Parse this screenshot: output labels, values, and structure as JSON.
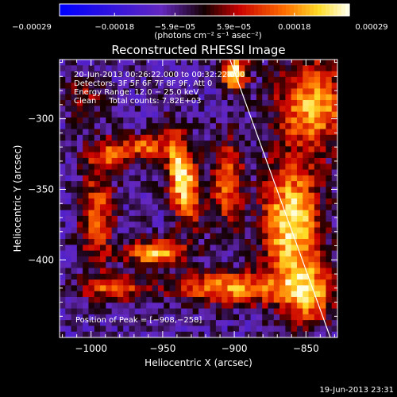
{
  "chart_data": {
    "type": "heatmap",
    "title": "Reconstructed RHESSI Image",
    "xlabel": "Heliocentric X (arcsec)",
    "ylabel": "Heliocentric Y (arcsec)",
    "xlim": [
      -1022,
      -828
    ],
    "ylim": [
      -455,
      -258
    ],
    "x_ticks": [
      -1000,
      -950,
      -900,
      -850
    ],
    "x_tick_labels": [
      "−1000",
      "−950",
      "−900",
      "−850"
    ],
    "y_ticks": [
      -400,
      -350,
      -300
    ],
    "y_tick_labels": [
      "−400",
      "−350",
      "−300"
    ],
    "colorbar": {
      "unit_label": "(photons cm⁻² s⁻¹ asec⁻²)",
      "min": -0.00029,
      "max": 0.00029,
      "top_tick_labels": [
        "−5.9e−05",
        "5.9e−05"
      ],
      "top_tick_values": [
        -5.9e-05,
        5.9e-05
      ],
      "bottom_tick_labels": [
        "−0.00029",
        "−0.00018",
        "−5.9e−05",
        "5.9e−05",
        "0.00018",
        "0.00029"
      ],
      "bottom_tick_values": [
        -0.00029,
        -0.00018,
        -5.9e-05,
        5.9e-05,
        0.00018,
        0.00029
      ]
    },
    "annotations": {
      "time_range": "20-Jun-2013 00:26:22.000 to 00:32:22.000",
      "detectors": "Detectors: 3F 5F 6F 7F 8F 9F, Att 0",
      "energy_range": "Energy Range: 12.0 − 25.0 keV",
      "clean_counts": "Clean     Total counts: 7.82E+03",
      "peak_position": "Position of Peak = [−908,−258]"
    },
    "limb_line": {
      "x": [
        -903,
        -833
      ],
      "y": [
        -258,
        -455
      ]
    },
    "sources": [
      {
        "x": -936,
        "y": -342,
        "amp": 1.0,
        "sx": 7,
        "sy": 22,
        "theta": 0.15
      },
      {
        "x": -955,
        "y": -395,
        "amp": 0.85,
        "sx": 14,
        "sy": 6,
        "theta": 0
      },
      {
        "x": -960,
        "y": -320,
        "amp": 0.55,
        "sx": 10,
        "sy": 6,
        "theta": 0
      },
      {
        "x": -996,
        "y": -370,
        "amp": 0.6,
        "sx": 8,
        "sy": 24,
        "theta": 0
      },
      {
        "x": -985,
        "y": -420,
        "amp": 0.55,
        "sx": 16,
        "sy": 6,
        "theta": 0
      },
      {
        "x": -985,
        "y": -325,
        "amp": 0.55,
        "sx": 12,
        "sy": 8,
        "theta": 0
      },
      {
        "x": -905,
        "y": -420,
        "amp": 0.7,
        "sx": 28,
        "sy": 8,
        "theta": 0
      },
      {
        "x": -905,
        "y": -345,
        "amp": 0.6,
        "sx": 8,
        "sy": 22,
        "theta": 0
      },
      {
        "x": -900,
        "y": -268,
        "amp": 1.0,
        "sx": 6,
        "sy": 8,
        "theta": 0
      },
      {
        "x": -860,
        "y": -375,
        "amp": 0.95,
        "sx": 14,
        "sy": 30,
        "theta": 0
      },
      {
        "x": -845,
        "y": -290,
        "amp": 0.75,
        "sx": 18,
        "sy": 22,
        "theta": 0
      },
      {
        "x": -848,
        "y": -425,
        "amp": 0.7,
        "sx": 12,
        "sy": 14,
        "theta": 0
      },
      {
        "x": -1005,
        "y": -285,
        "amp": 0.35,
        "sx": 10,
        "sy": 10,
        "theta": 0
      }
    ],
    "grid": false
  },
  "footer": {
    "date_stamp": "19-Jun-2013 23:31"
  },
  "colors": {
    "background": "#000000",
    "text": "#ffffff",
    "limb_line": "#ffffff"
  }
}
